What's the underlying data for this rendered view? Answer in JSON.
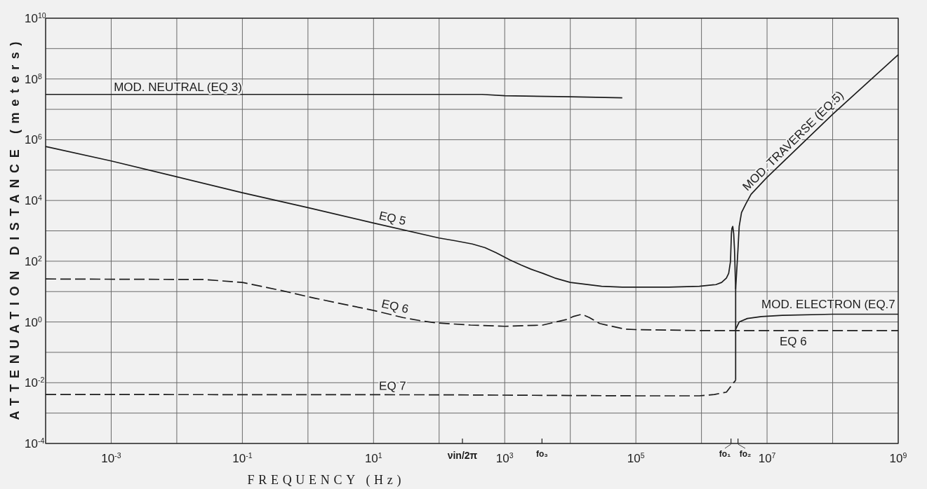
{
  "chart_data": {
    "type": "line",
    "xlabel": "FREQUENCY (Hz)",
    "ylabel": "ATTENUATION DISTANCE (meters)",
    "log": "xy",
    "grid": true,
    "xlim": [
      0.0001,
      1000000000
    ],
    "ylim": [
      0.0001,
      10000000000
    ],
    "xticks": [
      {
        "value": 0.0001,
        "label": null
      },
      {
        "value": 0.001,
        "label": "10$^{-3}$"
      },
      {
        "value": 0.01,
        "label": null
      },
      {
        "value": 0.1,
        "label": "10$^{-1}$"
      },
      {
        "value": 1,
        "label": null
      },
      {
        "value": 10,
        "label": "10$^{1}$"
      },
      {
        "value": 100,
        "label": null
      },
      {
        "value": 1000,
        "label": "10$^{3}$"
      },
      {
        "value": 3700,
        "label": "fo₃"
      },
      {
        "value": 10000,
        "label": null
      },
      {
        "value": 100000,
        "label": "10$^{5}$"
      },
      {
        "value": 1000000,
        "label": null
      },
      {
        "value": 10000000,
        "label": "10$^{7}$"
      },
      {
        "value": 100000000,
        "label": null
      },
      {
        "value": 1000000000,
        "label": "10$^{9}$"
      }
    ],
    "yticks": [
      {
        "value": 0.0001,
        "label": "10$^{-4}$"
      },
      {
        "value": 0.001,
        "label": null
      },
      {
        "value": 0.01,
        "label": "10$^{-2}$"
      },
      {
        "value": 0.1,
        "label": null
      },
      {
        "value": 1,
        "label": "10$^{0}$"
      },
      {
        "value": 10,
        "label": null
      },
      {
        "value": 100,
        "label": "10$^{2}$"
      },
      {
        "value": 1000,
        "label": null
      },
      {
        "value": 10000,
        "label": "10$^{4}$"
      },
      {
        "value": 100000,
        "label": null
      },
      {
        "value": 1000000,
        "label": "10$^{6}$"
      },
      {
        "value": 10000000,
        "label": null
      },
      {
        "value": 100000000,
        "label": "10$^{8}$"
      },
      {
        "value": 1000000000,
        "label": null
      },
      {
        "value": 10000000000,
        "label": "10$^{10}$"
      }
    ],
    "series": [
      {
        "name": "MOD. NEUTRAL (EQ 3)",
        "color": "#1c1c1c",
        "line_style": "solid",
        "x": [
          0.0001,
          0.01,
          1,
          100,
          450,
          1000,
          10000,
          62000
        ],
        "values": [
          31000000,
          31000000,
          31000000,
          31000000,
          31000000,
          28000000,
          26000000,
          24000000
        ]
      },
      {
        "name": "EQ 5",
        "color": "#1c1c1c",
        "line_style": "solid",
        "x": [
          0.0001,
          0.001,
          0.01,
          0.1,
          1,
          10,
          100,
          178,
          320,
          500,
          740,
          1200,
          1800,
          2500,
          3800,
          5800,
          10000,
          30000,
          62000,
          320000,
          930000,
          1660000,
          2030000,
          2400000,
          2600000,
          2770000,
          2860000,
          2910000,
          3000000,
          3100000,
          3190000,
          3320000
        ],
        "values": [
          600000,
          200000,
          60000,
          18000,
          5800,
          1800,
          580,
          470,
          370,
          280,
          190,
          110,
          74,
          55,
          40,
          28,
          20,
          15,
          14,
          14,
          15,
          17,
          20,
          28,
          40,
          98,
          810,
          1200,
          1400,
          800,
          240,
          12
        ]
      },
      {
        "name": "MOD. TRAVERSE (EQ.5)",
        "color": "#1c1c1c",
        "line_style": "solid",
        "x": [
          3320000,
          3320000,
          3600000,
          3760000,
          4080000,
          4800000,
          5700000,
          10000000,
          100000000,
          1000000000
        ],
        "values": [
          0.57,
          12,
          240,
          1400,
          4000,
          8100,
          16000,
          58000,
          6900000,
          630000000
        ]
      },
      {
        "name": "EQ 6",
        "color": "#1c1c1c",
        "line_style": "dashed",
        "x": [
          0.0001,
          0.026,
          0.1,
          0.38,
          1.3,
          10,
          28,
          52,
          93,
          300,
          1000,
          3800,
          8700,
          11000,
          15000,
          19500,
          28000,
          68000,
          100000,
          1000000,
          1000000000
        ],
        "values": [
          26,
          25,
          20,
          11,
          6,
          2.4,
          1.4,
          1.1,
          0.93,
          0.79,
          0.72,
          0.79,
          1.2,
          1.5,
          1.8,
          1.4,
          0.89,
          0.58,
          0.56,
          0.52,
          0.52
        ]
      },
      {
        "name": "EQ 7",
        "color": "#1c1c1c",
        "line_style": "dashed",
        "x": [
          0.0001,
          100,
          100000,
          930000,
          1570000,
          2400000,
          3060000,
          3320000
        ],
        "values": [
          0.0041,
          0.004,
          0.0037,
          0.0037,
          0.0041,
          0.0049,
          0.0098,
          0.012
        ]
      },
      {
        "name": "MOD. ELECTRON (EQ.7",
        "color": "#1c1c1c",
        "line_style": "solid",
        "x": [
          3320000,
          3320000,
          3760000,
          5000000,
          8200000,
          17000000,
          100000000,
          1000000000
        ],
        "values": [
          0.012,
          0.57,
          1.0,
          1.3,
          1.5,
          1.66,
          1.8,
          1.8
        ]
      }
    ],
    "annotations": [
      "νin/2π",
      "fo₁",
      "fo₂",
      {
        "text": "EQ 6",
        "x": 25000000,
        "y": 0.52
      }
    ]
  }
}
